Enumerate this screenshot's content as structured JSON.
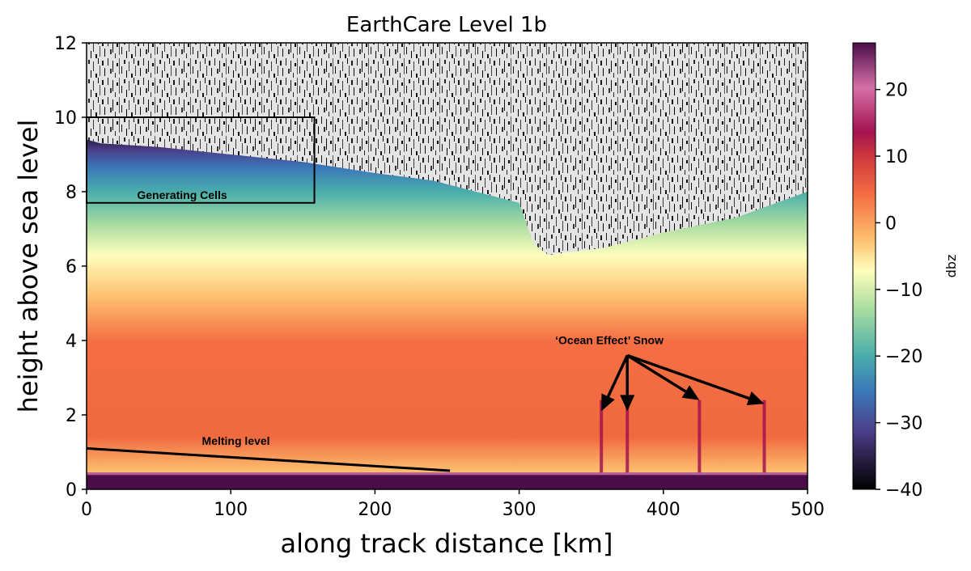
{
  "chart_data": {
    "type": "heatmap",
    "title": "EarthCare Level 1b",
    "xlabel": "along track distance [km]",
    "ylabel": "height above sea level",
    "xlim": [
      0,
      500
    ],
    "ylim": [
      0,
      12
    ],
    "x_ticks": [
      0,
      100,
      200,
      300,
      400,
      500
    ],
    "y_ticks": [
      0,
      2,
      4,
      6,
      8,
      10,
      12
    ],
    "colorbar": {
      "label": "dbz",
      "range": [
        -40,
        27
      ],
      "ticks": [
        20,
        10,
        0,
        -10,
        -20,
        -30,
        -40
      ],
      "colormap": "Spectral_r",
      "colors": [
        "#000000",
        "#2a1f46",
        "#4b3f8a",
        "#3a78b8",
        "#4aaeab",
        "#a6dba0",
        "#fefebd",
        "#fdbf6f",
        "#f46d43",
        "#d23c3d",
        "#a3134f",
        "#d670a8",
        "#4b0d4a"
      ]
    },
    "cloud_top_km": {
      "x": [
        0,
        10,
        50,
        100,
        150,
        200,
        240,
        270,
        300,
        310,
        320,
        360,
        400,
        450,
        500
      ],
      "y": [
        9.4,
        9.3,
        9.2,
        9.0,
        8.8,
        8.5,
        8.3,
        8.0,
        7.7,
        6.6,
        6.3,
        6.5,
        6.9,
        7.3,
        8.0
      ]
    },
    "annotations": [
      {
        "text": "Generating Cells",
        "x": 35,
        "y": 7.8
      },
      {
        "text": "Melting level",
        "x": 80,
        "y": 1.2
      },
      {
        "text": "‘Ocean Effect’ Snow",
        "x": 325,
        "y": 3.9
      }
    ],
    "generating_cells_box": {
      "x": [
        0,
        158
      ],
      "y": [
        7.7,
        10.0
      ]
    },
    "melting_level_line": {
      "x": [
        0,
        252
      ],
      "y": [
        1.1,
        0.5
      ]
    },
    "snow_arrows": [
      {
        "from": [
          375,
          3.6
        ],
        "to": [
          357,
          2.1
        ]
      },
      {
        "from": [
          375,
          3.6
        ],
        "to": [
          375,
          2.1
        ]
      },
      {
        "from": [
          375,
          3.6
        ],
        "to": [
          425,
          2.4
        ]
      },
      {
        "from": [
          375,
          3.6
        ],
        "to": [
          470,
          2.3
        ]
      }
    ]
  }
}
